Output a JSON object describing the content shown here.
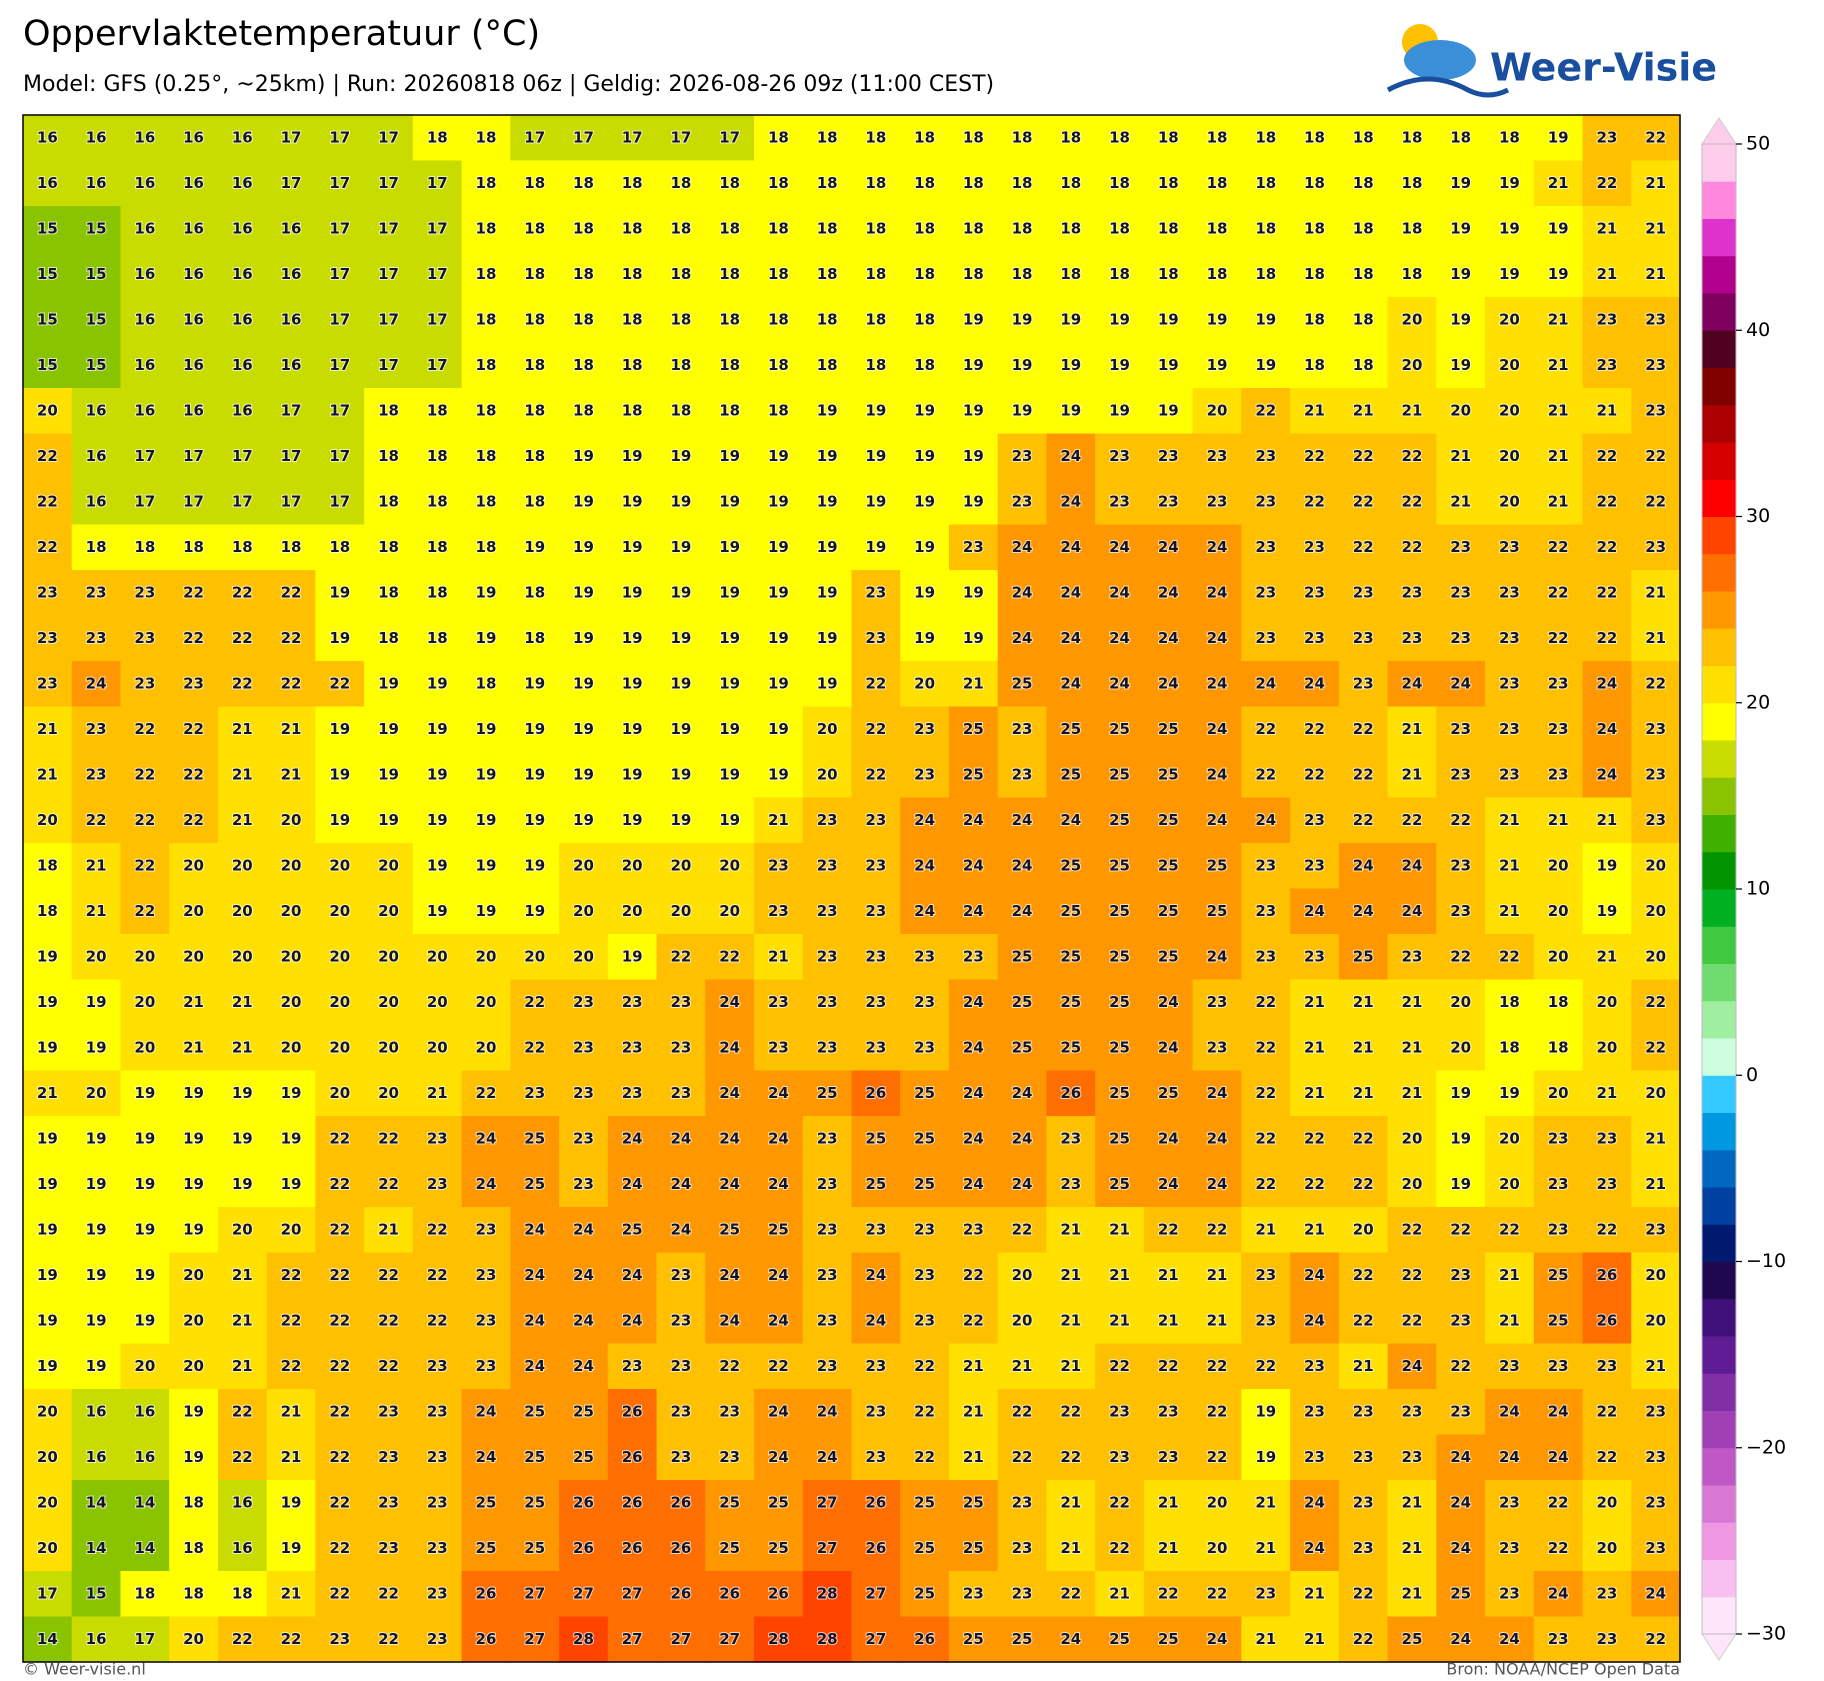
{
  "header": {
    "title": "Oppervlaktetemperatuur (°C)",
    "subtitle": "Model: GFS (0.25°, ~25km)  |  Run: 20260818 06z  |  Geldig: 2026-08-26 09z (11:00 CEST)"
  },
  "logo": {
    "text": "Weer-Visie"
  },
  "map": {
    "values": [
      [
        16,
        16,
        16,
        16,
        16,
        17,
        17,
        17,
        18,
        18,
        17,
        17,
        17,
        17,
        17,
        18,
        18,
        18,
        18,
        18,
        18,
        18,
        18,
        18,
        18,
        18,
        18,
        18,
        18,
        18,
        18,
        19,
        23,
        22
      ],
      [
        16,
        16,
        16,
        16,
        16,
        17,
        17,
        17,
        17,
        18,
        18,
        18,
        18,
        18,
        18,
        18,
        18,
        18,
        18,
        18,
        18,
        18,
        18,
        18,
        18,
        18,
        18,
        18,
        18,
        19,
        19,
        21,
        22,
        21
      ],
      [
        15,
        15,
        16,
        16,
        16,
        16,
        17,
        17,
        17,
        18,
        18,
        18,
        18,
        18,
        18,
        18,
        18,
        18,
        18,
        18,
        18,
        18,
        18,
        18,
        18,
        18,
        18,
        18,
        18,
        19,
        19,
        19,
        21,
        21
      ],
      [
        15,
        15,
        16,
        16,
        16,
        16,
        17,
        17,
        17,
        18,
        18,
        18,
        18,
        18,
        18,
        18,
        18,
        18,
        18,
        18,
        18,
        18,
        18,
        18,
        18,
        18,
        18,
        18,
        18,
        19,
        19,
        19,
        21,
        21
      ],
      [
        15,
        15,
        16,
        16,
        16,
        16,
        17,
        17,
        17,
        18,
        18,
        18,
        18,
        18,
        18,
        18,
        18,
        18,
        18,
        19,
        19,
        19,
        19,
        19,
        19,
        19,
        18,
        18,
        20,
        19,
        20,
        21,
        23,
        23
      ],
      [
        15,
        15,
        16,
        16,
        16,
        16,
        17,
        17,
        17,
        18,
        18,
        18,
        18,
        18,
        18,
        18,
        18,
        18,
        18,
        19,
        19,
        19,
        19,
        19,
        19,
        19,
        18,
        18,
        20,
        19,
        20,
        21,
        23,
        23
      ],
      [
        20,
        16,
        16,
        16,
        16,
        17,
        17,
        18,
        18,
        18,
        18,
        18,
        18,
        18,
        18,
        18,
        19,
        19,
        19,
        19,
        19,
        19,
        19,
        19,
        20,
        22,
        21,
        21,
        21,
        20,
        20,
        21,
        21,
        23
      ],
      [
        22,
        16,
        17,
        17,
        17,
        17,
        17,
        18,
        18,
        18,
        18,
        19,
        19,
        19,
        19,
        19,
        19,
        19,
        19,
        19,
        23,
        24,
        23,
        23,
        23,
        23,
        22,
        22,
        22,
        21,
        20,
        21,
        22,
        22
      ],
      [
        22,
        16,
        17,
        17,
        17,
        17,
        17,
        18,
        18,
        18,
        18,
        19,
        19,
        19,
        19,
        19,
        19,
        19,
        19,
        19,
        23,
        24,
        23,
        23,
        23,
        23,
        22,
        22,
        22,
        21,
        20,
        21,
        22,
        22
      ],
      [
        22,
        18,
        18,
        18,
        18,
        18,
        18,
        18,
        18,
        18,
        19,
        19,
        19,
        19,
        19,
        19,
        19,
        19,
        19,
        23,
        24,
        24,
        24,
        24,
        24,
        23,
        23,
        22,
        22,
        23,
        23,
        22,
        22,
        23
      ],
      [
        23,
        23,
        23,
        22,
        22,
        22,
        19,
        18,
        18,
        19,
        18,
        19,
        19,
        19,
        19,
        19,
        19,
        23,
        19,
        19,
        24,
        24,
        24,
        24,
        24,
        23,
        23,
        23,
        23,
        23,
        23,
        22,
        22,
        21
      ],
      [
        23,
        23,
        23,
        22,
        22,
        22,
        19,
        18,
        18,
        19,
        18,
        19,
        19,
        19,
        19,
        19,
        19,
        23,
        19,
        19,
        24,
        24,
        24,
        24,
        24,
        23,
        23,
        23,
        23,
        23,
        23,
        22,
        22,
        21
      ],
      [
        23,
        24,
        23,
        23,
        22,
        22,
        22,
        19,
        19,
        18,
        19,
        19,
        19,
        19,
        19,
        19,
        19,
        22,
        20,
        21,
        25,
        24,
        24,
        24,
        24,
        24,
        24,
        23,
        24,
        24,
        23,
        23,
        24,
        22
      ],
      [
        21,
        23,
        22,
        22,
        21,
        21,
        19,
        19,
        19,
        19,
        19,
        19,
        19,
        19,
        19,
        19,
        20,
        22,
        23,
        25,
        23,
        25,
        25,
        25,
        24,
        22,
        22,
        22,
        21,
        23,
        23,
        23,
        24,
        23
      ],
      [
        21,
        23,
        22,
        22,
        21,
        21,
        19,
        19,
        19,
        19,
        19,
        19,
        19,
        19,
        19,
        19,
        20,
        22,
        23,
        25,
        23,
        25,
        25,
        25,
        24,
        22,
        22,
        22,
        21,
        23,
        23,
        23,
        24,
        23
      ],
      [
        20,
        22,
        22,
        22,
        21,
        20,
        19,
        19,
        19,
        19,
        19,
        19,
        19,
        19,
        19,
        21,
        23,
        23,
        24,
        24,
        24,
        24,
        25,
        25,
        24,
        24,
        23,
        22,
        22,
        22,
        21,
        21,
        21,
        23
      ],
      [
        18,
        21,
        22,
        20,
        20,
        20,
        20,
        20,
        19,
        19,
        19,
        20,
        20,
        20,
        20,
        23,
        23,
        23,
        24,
        24,
        24,
        25,
        25,
        25,
        25,
        23,
        23,
        24,
        24,
        23,
        21,
        20,
        19,
        20
      ],
      [
        18,
        21,
        22,
        20,
        20,
        20,
        20,
        20,
        19,
        19,
        19,
        20,
        20,
        20,
        20,
        23,
        23,
        23,
        24,
        24,
        24,
        25,
        25,
        25,
        25,
        23,
        24,
        24,
        24,
        23,
        21,
        20,
        19,
        20
      ],
      [
        19,
        20,
        20,
        20,
        20,
        20,
        20,
        20,
        20,
        20,
        20,
        20,
        19,
        22,
        22,
        21,
        23,
        23,
        23,
        23,
        25,
        25,
        25,
        25,
        24,
        23,
        23,
        25,
        23,
        22,
        22,
        20,
        21,
        20
      ],
      [
        19,
        19,
        20,
        21,
        21,
        20,
        20,
        20,
        20,
        20,
        22,
        23,
        23,
        23,
        24,
        23,
        23,
        23,
        23,
        24,
        25,
        25,
        25,
        24,
        23,
        22,
        21,
        21,
        21,
        20,
        18,
        18,
        20,
        22
      ],
      [
        19,
        19,
        20,
        21,
        21,
        20,
        20,
        20,
        20,
        20,
        22,
        23,
        23,
        23,
        24,
        23,
        23,
        23,
        23,
        24,
        25,
        25,
        25,
        24,
        23,
        22,
        21,
        21,
        21,
        20,
        18,
        18,
        20,
        22
      ],
      [
        21,
        20,
        19,
        19,
        19,
        19,
        20,
        20,
        21,
        22,
        23,
        23,
        23,
        23,
        24,
        24,
        25,
        26,
        25,
        24,
        24,
        26,
        25,
        25,
        24,
        22,
        21,
        21,
        21,
        19,
        19,
        20,
        21,
        20
      ],
      [
        19,
        19,
        19,
        19,
        19,
        19,
        22,
        22,
        23,
        24,
        25,
        23,
        24,
        24,
        24,
        24,
        23,
        25,
        25,
        24,
        24,
        23,
        25,
        24,
        24,
        22,
        22,
        22,
        20,
        19,
        20,
        23,
        23,
        21
      ],
      [
        19,
        19,
        19,
        19,
        19,
        19,
        22,
        22,
        23,
        24,
        25,
        23,
        24,
        24,
        24,
        24,
        23,
        25,
        25,
        24,
        24,
        23,
        25,
        24,
        24,
        22,
        22,
        22,
        20,
        19,
        20,
        23,
        23,
        21
      ],
      [
        19,
        19,
        19,
        19,
        20,
        20,
        22,
        21,
        22,
        23,
        24,
        24,
        25,
        24,
        25,
        25,
        23,
        23,
        23,
        23,
        22,
        21,
        21,
        22,
        22,
        21,
        21,
        20,
        22,
        22,
        22,
        23,
        22,
        23
      ],
      [
        19,
        19,
        19,
        20,
        21,
        22,
        22,
        22,
        22,
        23,
        24,
        24,
        24,
        23,
        24,
        24,
        23,
        24,
        23,
        22,
        20,
        21,
        21,
        21,
        21,
        23,
        24,
        22,
        22,
        23,
        21,
        25,
        26,
        20
      ],
      [
        19,
        19,
        19,
        20,
        21,
        22,
        22,
        22,
        22,
        23,
        24,
        24,
        24,
        23,
        24,
        24,
        23,
        24,
        23,
        22,
        20,
        21,
        21,
        21,
        21,
        23,
        24,
        22,
        22,
        23,
        21,
        25,
        26,
        20
      ],
      [
        19,
        19,
        20,
        20,
        21,
        22,
        22,
        22,
        23,
        23,
        24,
        24,
        23,
        23,
        22,
        22,
        23,
        23,
        22,
        21,
        21,
        21,
        22,
        22,
        22,
        22,
        23,
        21,
        24,
        22,
        23,
        23,
        23,
        21
      ],
      [
        20,
        16,
        16,
        19,
        22,
        21,
        22,
        23,
        23,
        24,
        25,
        25,
        26,
        23,
        23,
        24,
        24,
        23,
        22,
        21,
        22,
        22,
        23,
        23,
        22,
        19,
        23,
        23,
        23,
        23,
        24,
        24,
        22,
        23
      ],
      [
        20,
        16,
        16,
        19,
        22,
        21,
        22,
        23,
        23,
        24,
        25,
        25,
        26,
        23,
        23,
        24,
        24,
        23,
        22,
        21,
        22,
        22,
        23,
        23,
        22,
        19,
        23,
        23,
        23,
        24,
        24,
        24,
        22,
        23
      ],
      [
        20,
        14,
        14,
        18,
        16,
        19,
        22,
        23,
        23,
        25,
        25,
        26,
        26,
        26,
        25,
        25,
        27,
        26,
        25,
        25,
        23,
        21,
        22,
        21,
        20,
        21,
        24,
        23,
        21,
        24,
        23,
        22,
        20,
        23
      ],
      [
        20,
        14,
        14,
        18,
        16,
        19,
        22,
        23,
        23,
        25,
        25,
        26,
        26,
        26,
        25,
        25,
        27,
        26,
        25,
        25,
        23,
        21,
        22,
        21,
        20,
        21,
        24,
        23,
        21,
        24,
        23,
        22,
        20,
        23
      ],
      [
        17,
        15,
        18,
        18,
        18,
        21,
        22,
        22,
        23,
        26,
        27,
        27,
        27,
        26,
        26,
        26,
        28,
        27,
        25,
        23,
        23,
        22,
        21,
        22,
        22,
        23,
        21,
        22,
        21,
        25,
        23,
        24,
        23,
        24
      ],
      [
        14,
        16,
        17,
        20,
        22,
        22,
        23,
        22,
        23,
        26,
        27,
        28,
        27,
        27,
        27,
        28,
        28,
        27,
        26,
        25,
        25,
        24,
        25,
        25,
        24,
        21,
        21,
        22,
        25,
        24,
        24,
        23,
        23,
        22
      ]
    ]
  },
  "colorbar": {
    "min": -30,
    "max": 50,
    "step": 2,
    "colors": [
      "#fde6fa",
      "#f8c0f0",
      "#ee98e4",
      "#d878d4",
      "#bf58c4",
      "#a040b4",
      "#8030a4",
      "#601c94",
      "#40107a",
      "#200850",
      "#001a70",
      "#0040a0",
      "#0068c0",
      "#0098e0",
      "#33c8ff",
      "#ccffdd",
      "#a0eea0",
      "#70dc70",
      "#40c840",
      "#00b020",
      "#009400",
      "#40b000",
      "#8ac400",
      "#c8dc00",
      "#ffff00",
      "#ffe000",
      "#ffc000",
      "#ff9800",
      "#ff6e00",
      "#ff4400",
      "#ff0000",
      "#d40000",
      "#aa0000",
      "#800000",
      "#500020",
      "#800060",
      "#b0008c",
      "#dd33cc",
      "#ff88dd",
      "#ffcceb"
    ],
    "ticks": [
      50,
      40,
      30,
      20,
      10,
      0,
      {
        "value": -10,
        "label": "−10"
      },
      {
        "value": -20,
        "label": "−20"
      },
      {
        "value": -30,
        "label": "−30"
      }
    ]
  },
  "footer": {
    "left": "© Weer-visie.nl",
    "right": "Bron: NOAA/NCEP Open Data"
  }
}
